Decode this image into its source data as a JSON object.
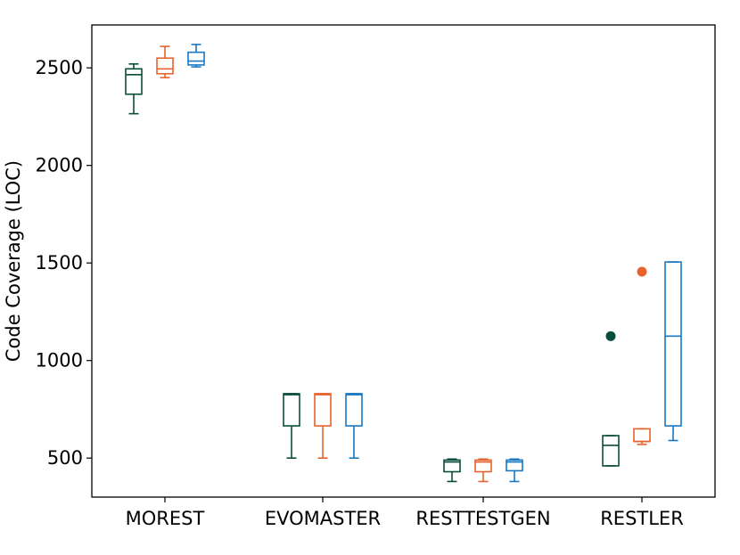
{
  "chart_data": {
    "type": "box",
    "title": "",
    "xlabel": "",
    "ylabel": "Code Coverage (LOC)",
    "ylim": [
      300,
      2720
    ],
    "yticks": [
      500,
      1000,
      1500,
      2000,
      2500
    ],
    "categories": [
      "MOREST",
      "EVOMASTER",
      "RESTTESTGEN",
      "RESTLER"
    ],
    "series": [
      {
        "color": "#0b4d3c",
        "boxes": [
          {
            "whislo": 2265,
            "q1": 2365,
            "med": 2465,
            "q3": 2495,
            "whishi": 2520,
            "fliers": []
          },
          {
            "whislo": 500,
            "q1": 665,
            "med": 825,
            "q3": 830,
            "whishi": 830,
            "fliers": []
          },
          {
            "whislo": 380,
            "q1": 430,
            "med": 480,
            "q3": 490,
            "whishi": 495,
            "fliers": []
          },
          {
            "whislo": 460,
            "q1": 460,
            "med": 565,
            "q3": 615,
            "whishi": 615,
            "fliers": [
              1125
            ]
          }
        ]
      },
      {
        "color": "#e8622c",
        "boxes": [
          {
            "whislo": 2450,
            "q1": 2470,
            "med": 2495,
            "q3": 2550,
            "whishi": 2610,
            "fliers": []
          },
          {
            "whislo": 500,
            "q1": 665,
            "med": 825,
            "q3": 830,
            "whishi": 830,
            "fliers": []
          },
          {
            "whislo": 380,
            "q1": 430,
            "med": 480,
            "q3": 490,
            "whishi": 495,
            "fliers": []
          },
          {
            "whislo": 570,
            "q1": 585,
            "med": 585,
            "q3": 650,
            "whishi": 650,
            "fliers": [
              1455
            ]
          }
        ]
      },
      {
        "color": "#1a78c2",
        "boxes": [
          {
            "whislo": 2505,
            "q1": 2515,
            "med": 2535,
            "q3": 2580,
            "whishi": 2620,
            "fliers": []
          },
          {
            "whislo": 500,
            "q1": 665,
            "med": 825,
            "q3": 830,
            "whishi": 830,
            "fliers": []
          },
          {
            "whislo": 380,
            "q1": 435,
            "med": 480,
            "q3": 490,
            "whishi": 495,
            "fliers": []
          },
          {
            "whislo": 590,
            "q1": 665,
            "med": 1125,
            "q3": 1505,
            "whishi": 1505,
            "fliers": []
          }
        ]
      }
    ],
    "grid": false,
    "legend": "none"
  }
}
